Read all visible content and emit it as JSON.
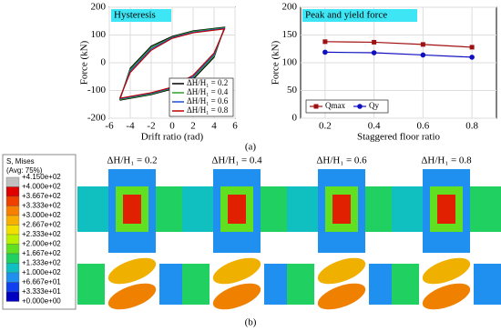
{
  "chart_data": [
    {
      "type": "line",
      "annotation": "Hysteresis",
      "x_label": "Drift ratio (rad)",
      "y_label": "Force (kN)",
      "xlim": [
        -6,
        6
      ],
      "xticks": [
        -6,
        -4,
        -2,
        0,
        2,
        4,
        6
      ],
      "ylim": [
        -200,
        200
      ],
      "yticks": [
        -200,
        -100,
        0,
        100,
        200
      ],
      "legend": "lower-right",
      "series": [
        {
          "name": "ΔH/H₁ = 0.2",
          "color": "#000000",
          "x": [
            -5,
            -4,
            -2,
            0,
            2,
            5,
            4,
            2,
            0,
            -2,
            -5
          ],
          "values": [
            -135,
            -20,
            60,
            95,
            115,
            128,
            20,
            -60,
            -95,
            -115,
            -135
          ]
        },
        {
          "name": "ΔH/H₁ = 0.4",
          "color": "#2ca02c",
          "x": [
            -5,
            -4,
            -2,
            0,
            2,
            5,
            4,
            2,
            0,
            -2,
            -5
          ],
          "values": [
            -133,
            -25,
            55,
            92,
            113,
            126,
            25,
            -55,
            -92,
            -113,
            -133
          ]
        },
        {
          "name": "ΔH/H₁ = 0.6",
          "color": "#1f4fd0",
          "x": [
            -5,
            -4,
            -2,
            0,
            2,
            5,
            4,
            2,
            0,
            -2,
            -5
          ],
          "values": [
            -130,
            -30,
            50,
            90,
            110,
            124,
            30,
            -50,
            -90,
            -110,
            -130
          ]
        },
        {
          "name": "ΔH/H₁ = 0.8",
          "color": "#c00000",
          "x": [
            -5,
            -4,
            -2,
            0,
            2,
            5,
            4,
            2,
            0,
            -2,
            -5
          ],
          "values": [
            -128,
            -35,
            45,
            88,
            108,
            122,
            35,
            -45,
            -88,
            -108,
            -128
          ]
        }
      ]
    },
    {
      "type": "line",
      "annotation": "Peak and yield force",
      "x_label": "Staggered floor ratio",
      "y_label": "Force (kN)",
      "x": [
        0.2,
        0.4,
        0.6,
        0.8
      ],
      "xlim": [
        0.1,
        0.9
      ],
      "xticks": [
        0.2,
        0.4,
        0.6,
        0.8
      ],
      "ylim": [
        0,
        200
      ],
      "yticks": [
        0,
        50,
        100,
        150,
        200
      ],
      "legend": "lower-left",
      "series": [
        {
          "name": "Qmax",
          "color": "#a01010",
          "marker": "square",
          "values": [
            138,
            137,
            133,
            128
          ]
        },
        {
          "name": "Qy",
          "color": "#1010c0",
          "marker": "circle",
          "values": [
            119,
            118,
            114,
            110
          ]
        }
      ]
    }
  ],
  "figure": {
    "label_a": "(a)",
    "label_b": "(b)",
    "contour_title": "S, Mises",
    "contour_subtitle": "(Avg: 75%)",
    "contour_levels": [
      "+4.150e+02",
      "+4.000e+02",
      "+3.667e+02",
      "+3.333e+02",
      "+3.000e+02",
      "+2.667e+02",
      "+2.333e+02",
      "+2.000e+02",
      "+1.667e+02",
      "+1.333e+02",
      "+1.000e+02",
      "+6.667e+01",
      "+3.333e+01",
      "+0.000e+00"
    ],
    "contour_colors": [
      "#c0c0c0",
      "#e00000",
      "#f04000",
      "#f88000",
      "#f8b000",
      "#f0e000",
      "#b8f000",
      "#60e020",
      "#20d060",
      "#10c0c0",
      "#2090f0",
      "#1040f0",
      "#0000c0"
    ],
    "panel_headers": [
      "ΔH/H₁ = 0.2",
      "ΔH/H₁ = 0.4",
      "ΔH/H₁ = 0.6",
      "ΔH/H₁ = 0.8"
    ]
  }
}
